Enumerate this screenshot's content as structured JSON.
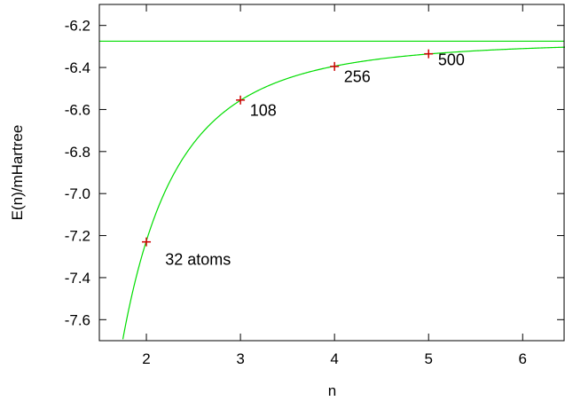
{
  "chart_data": {
    "type": "scatter",
    "title": "",
    "xlabel": "n",
    "ylabel": "E(n)/mHartree",
    "xlim": [
      1.5,
      6.45
    ],
    "ylim": [
      -7.7,
      -6.1
    ],
    "xticks": [
      2,
      3,
      4,
      5,
      6
    ],
    "yticks": [
      -7.6,
      -7.4,
      -7.2,
      -7.0,
      -6.8,
      -6.6,
      -6.4,
      -6.2
    ],
    "grid": false,
    "legend": "none",
    "colors": {
      "points": "#cc0000",
      "fit": "#00dd00",
      "axes": "#000000"
    },
    "series": [
      {
        "type": "scatter",
        "marker": "plus",
        "x": [
          2,
          3,
          4,
          5
        ],
        "y": [
          -7.23,
          -6.555,
          -6.395,
          -6.335
        ]
      },
      {
        "type": "line",
        "fit": {
          "a": -6.275,
          "b": -7.6,
          "p": 3
        }
      },
      {
        "type": "hline",
        "y": -6.275
      }
    ],
    "annotations": [
      {
        "text": "32 atoms",
        "x": 2.2,
        "y": -7.34
      },
      {
        "text": "108",
        "x": 3.1,
        "y": -6.63
      },
      {
        "text": "256",
        "x": 4.1,
        "y": -6.47
      },
      {
        "text": "500",
        "x": 5.1,
        "y": -6.39
      }
    ]
  }
}
